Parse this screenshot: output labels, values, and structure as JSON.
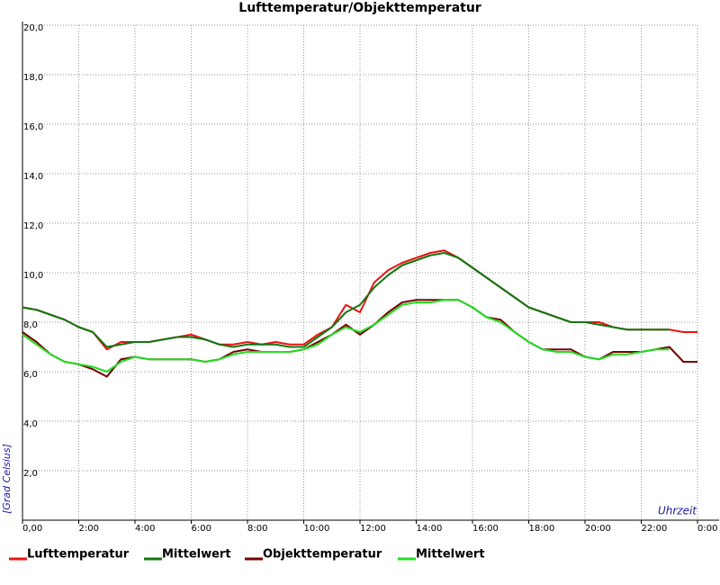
{
  "chart_data": {
    "type": "line",
    "title": "Lufttemperatur/Objekttemperatur",
    "ylabel": "[Grad Celsius]",
    "xlabel": "Uhrzeit",
    "x": [
      0,
      0.5,
      1,
      1.5,
      2,
      2.5,
      3,
      3.5,
      4,
      4.5,
      5,
      5.5,
      6,
      6.5,
      7,
      7.5,
      8,
      8.5,
      9,
      9.5,
      10,
      10.5,
      11,
      11.5,
      12,
      12.5,
      13,
      13.5,
      14,
      14.5,
      15,
      15.5,
      16,
      16.5,
      17,
      17.5,
      18,
      18.5,
      19,
      19.5,
      20,
      20.5,
      21,
      21.5,
      22,
      22.5,
      23,
      23.5,
      24
    ],
    "series": [
      {
        "name": "Lufttemperatur",
        "color": "#ee1111",
        "values": [
          8.6,
          8.5,
          8.3,
          8.1,
          7.8,
          7.6,
          6.9,
          7.2,
          7.2,
          7.2,
          7.3,
          7.4,
          7.5,
          7.3,
          7.1,
          7.1,
          7.2,
          7.1,
          7.2,
          7.1,
          7.1,
          7.5,
          7.8,
          8.7,
          8.4,
          9.6,
          10.1,
          10.4,
          10.6,
          10.8,
          10.9,
          10.6,
          10.2,
          9.8,
          9.4,
          9.0,
          8.6,
          8.4,
          8.2,
          8.0,
          8.0,
          8.0,
          7.8,
          7.7,
          7.7,
          7.7,
          7.7,
          7.6,
          7.6
        ]
      },
      {
        "name": "Mittelwert",
        "color": "#117711",
        "values": [
          8.6,
          8.5,
          8.3,
          8.1,
          7.8,
          7.6,
          7.0,
          7.1,
          7.2,
          7.2,
          7.3,
          7.4,
          7.4,
          7.3,
          7.1,
          7.0,
          7.1,
          7.1,
          7.1,
          7.0,
          7.0,
          7.4,
          7.8,
          8.4,
          8.7,
          9.4,
          9.9,
          10.3,
          10.5,
          10.7,
          10.8,
          10.6,
          10.2,
          9.8,
          9.4,
          9.0,
          8.6,
          8.4,
          8.2,
          8.0,
          8.0,
          7.9,
          7.8,
          7.7,
          7.7,
          7.7,
          7.7,
          null,
          null
        ]
      },
      {
        "name": "Objekttemperatur",
        "color": "#770000",
        "values": [
          7.6,
          7.2,
          6.7,
          6.4,
          6.3,
          6.1,
          5.8,
          6.5,
          6.6,
          6.5,
          6.5,
          6.5,
          6.5,
          6.4,
          6.5,
          6.8,
          6.9,
          6.8,
          6.8,
          6.8,
          6.9,
          7.2,
          7.5,
          7.9,
          7.5,
          7.9,
          8.4,
          8.8,
          8.9,
          8.9,
          8.9,
          8.9,
          8.6,
          8.2,
          8.1,
          7.6,
          7.2,
          6.9,
          6.9,
          6.9,
          6.6,
          6.5,
          6.8,
          6.8,
          6.8,
          6.9,
          7.0,
          6.4,
          6.4
        ]
      },
      {
        "name": "Mittelwert",
        "color": "#22dd22",
        "values": [
          7.5,
          7.1,
          6.7,
          6.4,
          6.3,
          6.2,
          6.0,
          6.4,
          6.6,
          6.5,
          6.5,
          6.5,
          6.5,
          6.4,
          6.5,
          6.7,
          6.8,
          6.8,
          6.8,
          6.8,
          6.9,
          7.1,
          7.5,
          7.8,
          7.6,
          7.9,
          8.3,
          8.7,
          8.8,
          8.8,
          8.9,
          8.9,
          8.6,
          8.2,
          8.0,
          7.6,
          7.2,
          6.9,
          6.8,
          6.8,
          6.6,
          6.5,
          6.7,
          6.7,
          6.8,
          6.9,
          6.9,
          null,
          null
        ]
      }
    ],
    "xlim": [
      0,
      24
    ],
    "xticks": [
      {
        "value": 0,
        "label": "0,00"
      },
      {
        "value": 2,
        "label": "2:00"
      },
      {
        "value": 4,
        "label": "4:00"
      },
      {
        "value": 6,
        "label": "6:00"
      },
      {
        "value": 8,
        "label": "8:00"
      },
      {
        "value": 10,
        "label": "10:00"
      },
      {
        "value": 12,
        "label": "12:00"
      },
      {
        "value": 14,
        "label": "14:00"
      },
      {
        "value": 16,
        "label": "16:00"
      },
      {
        "value": 18,
        "label": "18:00"
      },
      {
        "value": 20,
        "label": "20:00"
      },
      {
        "value": 22,
        "label": "22:00"
      },
      {
        "value": 24,
        "label": "0:00"
      }
    ],
    "ylim": [
      0,
      20
    ],
    "yticks": [
      {
        "value": 2,
        "label": "2,0"
      },
      {
        "value": 4,
        "label": "4,0"
      },
      {
        "value": 6,
        "label": "6,0"
      },
      {
        "value": 8,
        "label": "8,0"
      },
      {
        "value": 10,
        "label": "10,0"
      },
      {
        "value": 12,
        "label": "12,0"
      },
      {
        "value": 14,
        "label": "14,0"
      },
      {
        "value": 16,
        "label": "16,0"
      },
      {
        "value": 18,
        "label": "18,0"
      },
      {
        "value": 20,
        "label": "20,0"
      }
    ],
    "grid": true,
    "legend": "bottom"
  }
}
